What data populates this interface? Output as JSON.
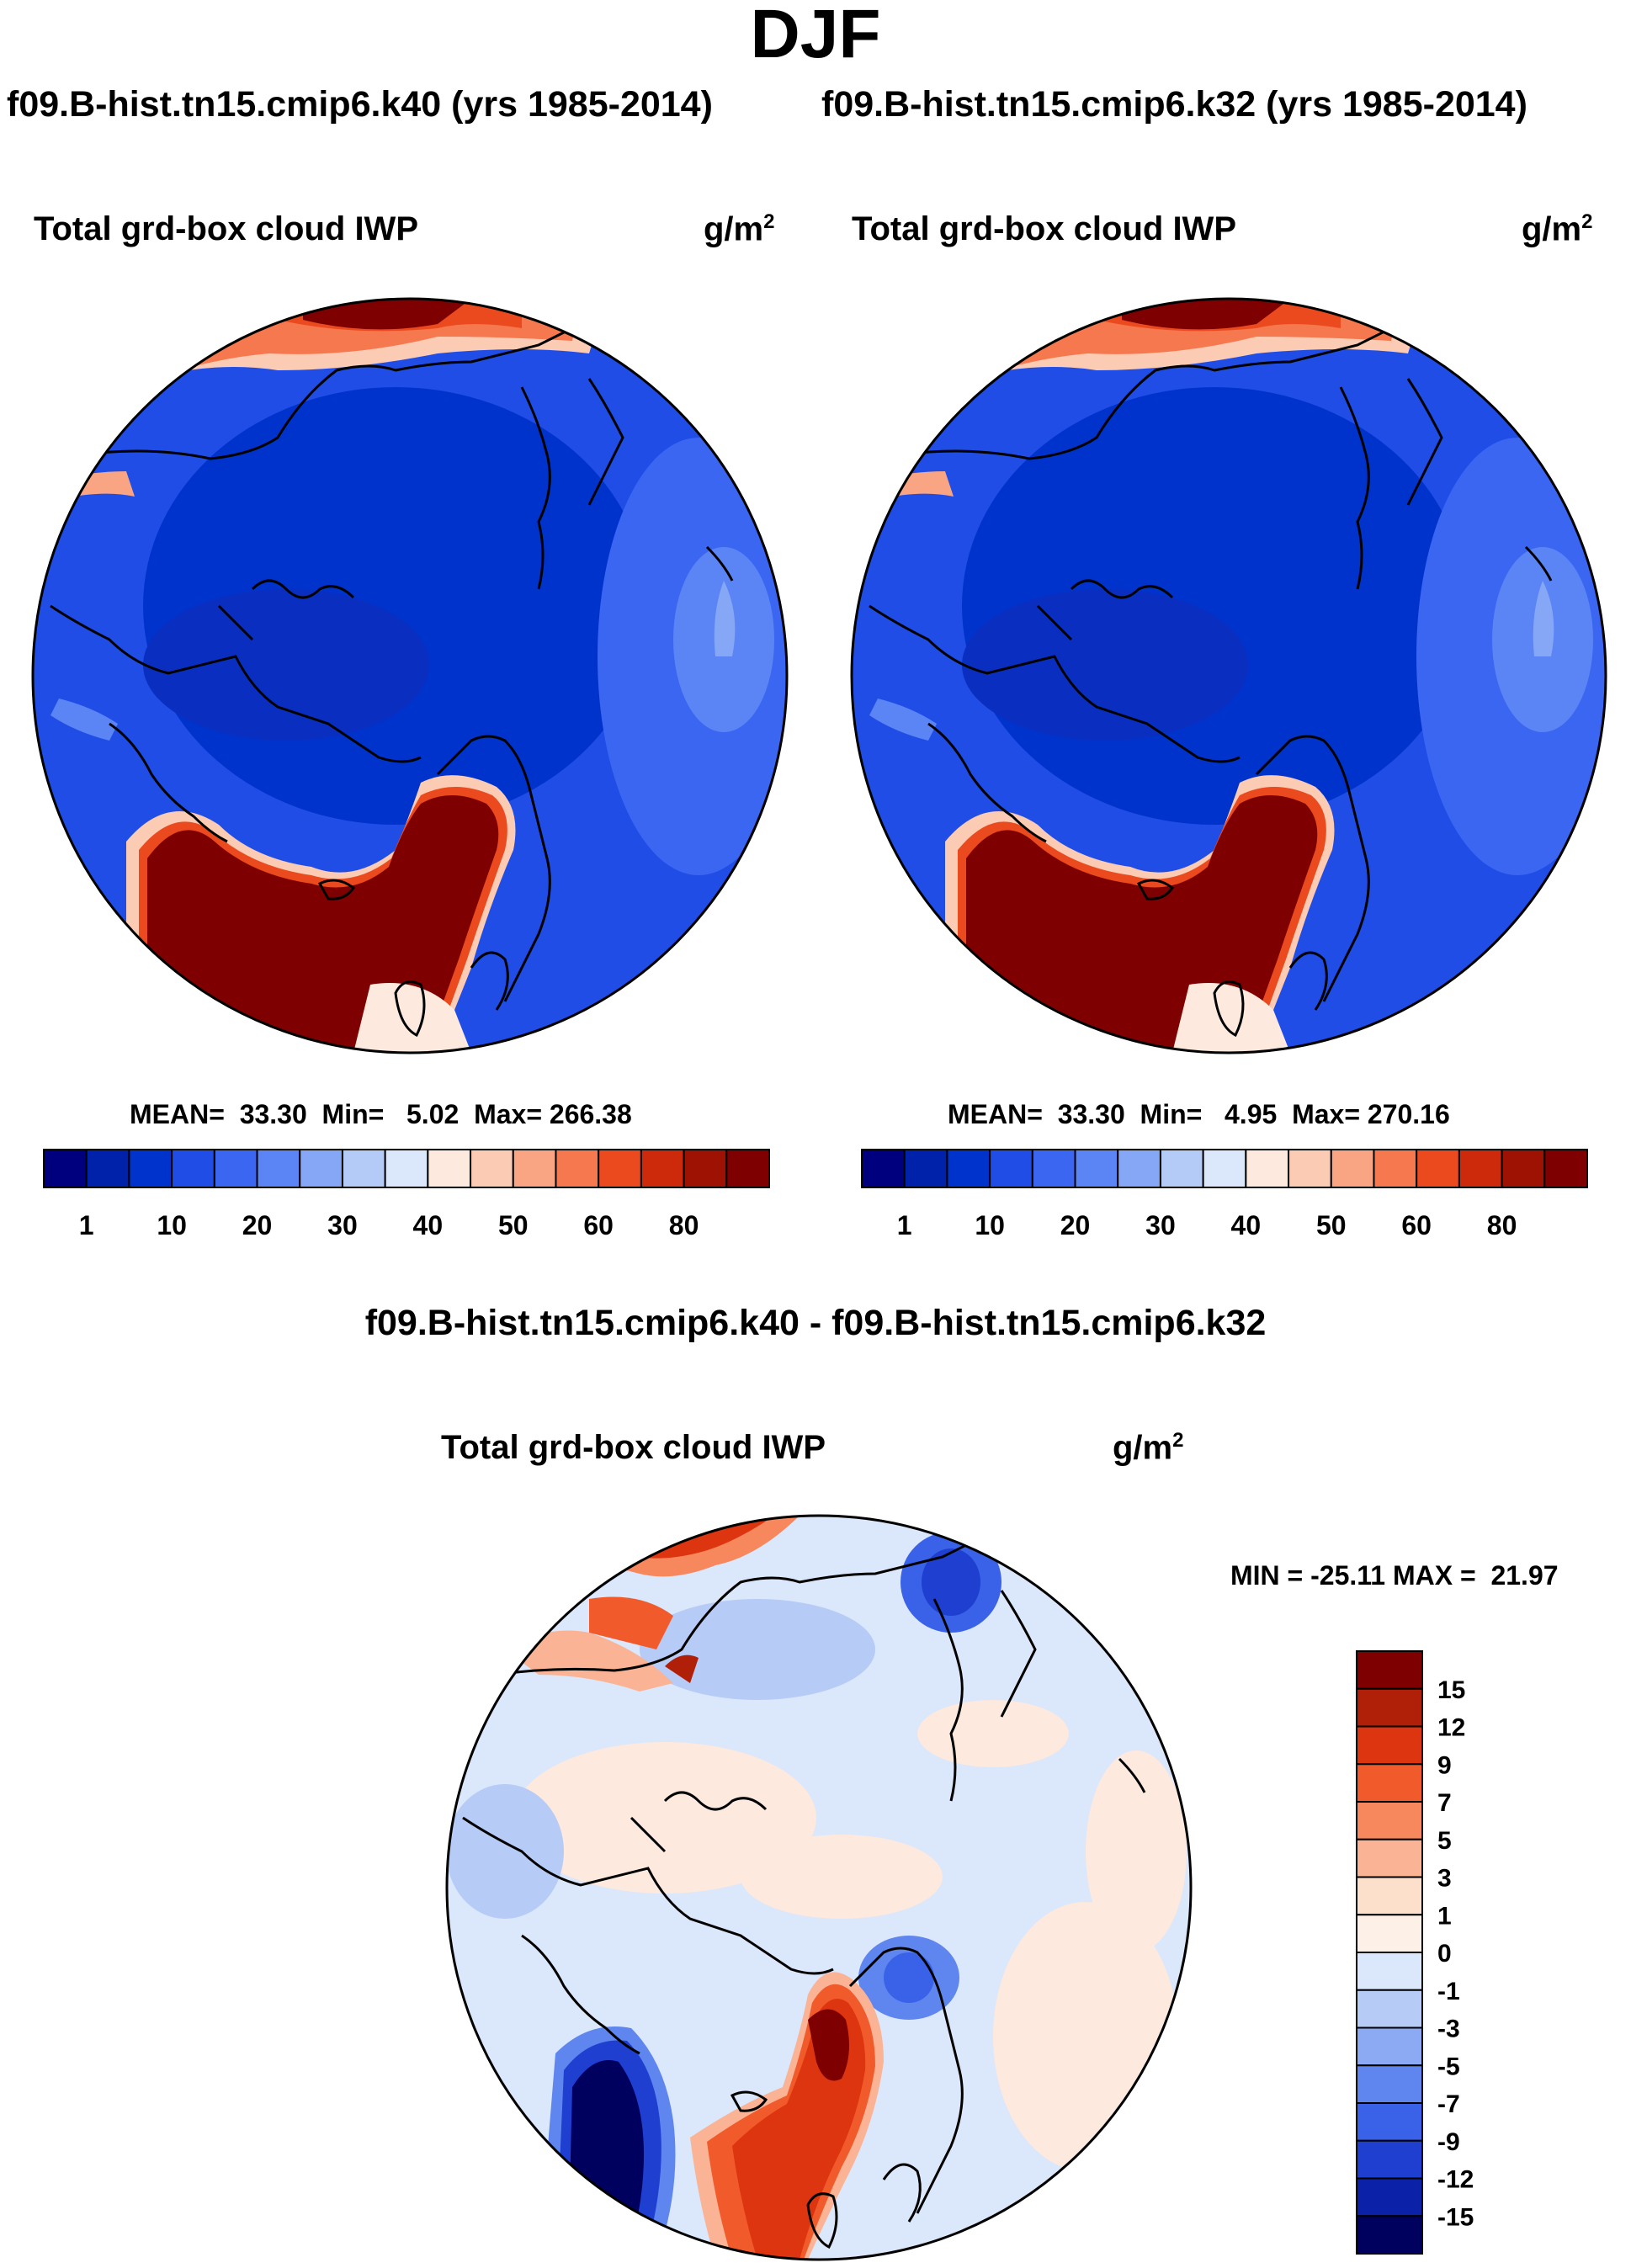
{
  "figure": {
    "season": "DJF",
    "case_left": "f09.B-hist.tn15.cmip6.k40 (yrs 1985-2014)",
    "case_right": "f09.B-hist.tn15.cmip6.k32 (yrs 1985-2014)",
    "diff_title": "f09.B-hist.tn15.cmip6.k40 - f09.B-hist.tn15.cmip6.k32"
  },
  "panels": {
    "left": {
      "variable": "Total grd-box cloud IWP",
      "units_base": "g/m",
      "units_exp": "2",
      "stats": "MEAN=  33.30  Min=   5.02  Max= 266.38"
    },
    "right": {
      "variable": "Total grd-box cloud IWP",
      "units_base": "g/m",
      "units_exp": "2",
      "stats": "MEAN=  33.30  Min=   4.95  Max= 270.16"
    },
    "diff": {
      "variable": "Total grd-box cloud IWP",
      "units_base": "g/m",
      "units_exp": "2",
      "stats": "MIN = -25.11 MAX =  21.97"
    }
  },
  "chart_data": [
    {
      "type": "heatmap",
      "projection": "north-polar-stereographic",
      "title": "Total grd-box cloud IWP",
      "case": "f09.B-hist.tn15.cmip6.k40 (yrs 1985-2014)",
      "units": "g/m2",
      "mean": 33.3,
      "min": 5.02,
      "max": 266.38,
      "colorbar": {
        "orientation": "horizontal",
        "levels": [
          1,
          5,
          10,
          15,
          20,
          25,
          30,
          35,
          40,
          45,
          50,
          55,
          60,
          70,
          80
        ],
        "tick_labels": [
          "1",
          "10",
          "20",
          "30",
          "40",
          "50",
          "60",
          "80"
        ],
        "colors": [
          "#00007f",
          "#0022aa",
          "#0033cc",
          "#1f4de6",
          "#3a66f2",
          "#5b85f5",
          "#86a7f5",
          "#b4cbf7",
          "#dbe7fb",
          "#fde9dd",
          "#fccbb3",
          "#f9a584",
          "#f5784f",
          "#eb4a1f",
          "#cc2a0a",
          "#9e1204",
          "#7f0000"
        ]
      },
      "features": [
        "high IWP (>80) over North Atlantic / Greenland-Norwegian Sea",
        "high IWP (>80) over North Pacific / Gulf of Alaska",
        "low IWP (1-10) over central Arctic Ocean"
      ]
    },
    {
      "type": "heatmap",
      "projection": "north-polar-stereographic",
      "title": "Total grd-box cloud IWP",
      "case": "f09.B-hist.tn15.cmip6.k32 (yrs 1985-2014)",
      "units": "g/m2",
      "mean": 33.3,
      "min": 4.95,
      "max": 270.16,
      "colorbar": {
        "orientation": "horizontal",
        "levels": [
          1,
          5,
          10,
          15,
          20,
          25,
          30,
          35,
          40,
          45,
          50,
          55,
          60,
          70,
          80
        ],
        "tick_labels": [
          "1",
          "10",
          "20",
          "30",
          "40",
          "50",
          "60",
          "80"
        ],
        "colors": [
          "#00007f",
          "#0022aa",
          "#0033cc",
          "#1f4de6",
          "#3a66f2",
          "#5b85f5",
          "#86a7f5",
          "#b4cbf7",
          "#dbe7fb",
          "#fde9dd",
          "#fccbb3",
          "#f9a584",
          "#f5784f",
          "#eb4a1f",
          "#cc2a0a",
          "#9e1204",
          "#7f0000"
        ]
      },
      "features": [
        "high IWP (>80) over North Atlantic / Greenland-Norwegian Sea",
        "high IWP (>80) over North Pacific / Gulf of Alaska",
        "low IWP (1-10) over central Arctic Ocean"
      ]
    },
    {
      "type": "heatmap",
      "projection": "north-polar-stereographic",
      "title": "Total grd-box cloud IWP",
      "case": "f09.B-hist.tn15.cmip6.k40 - f09.B-hist.tn15.cmip6.k32",
      "units": "g/m2",
      "min": -25.11,
      "max": 21.97,
      "colorbar": {
        "orientation": "vertical",
        "levels": [
          -15,
          -12,
          -9,
          -7,
          -5,
          -3,
          -1,
          0,
          1,
          3,
          5,
          7,
          9,
          12,
          15
        ],
        "tick_labels": [
          "15",
          "12",
          "9",
          "7",
          "5",
          "3",
          "1",
          "0",
          "-1",
          "-3",
          "-5",
          "-7",
          "-9",
          "-12",
          "-15"
        ],
        "colors": [
          "#7f0000",
          "#b01f08",
          "#dd3510",
          "#f15a2a",
          "#f7875c",
          "#fab394",
          "#fde0cc",
          "#fdf0e6",
          "#dbe7fb",
          "#b6ccf6",
          "#8caaf4",
          "#5f85ef",
          "#3a62e8",
          "#1f3fd0",
          "#0b22a8",
          "#00005e"
        ]
      },
      "features": [
        "positive anomaly over Norwegian Sea / Scandinavia",
        "positive anomaly over North Pacific",
        "negative anomaly near Labrador Sea / Baffin Bay",
        "near-zero over most of Arctic"
      ]
    }
  ]
}
